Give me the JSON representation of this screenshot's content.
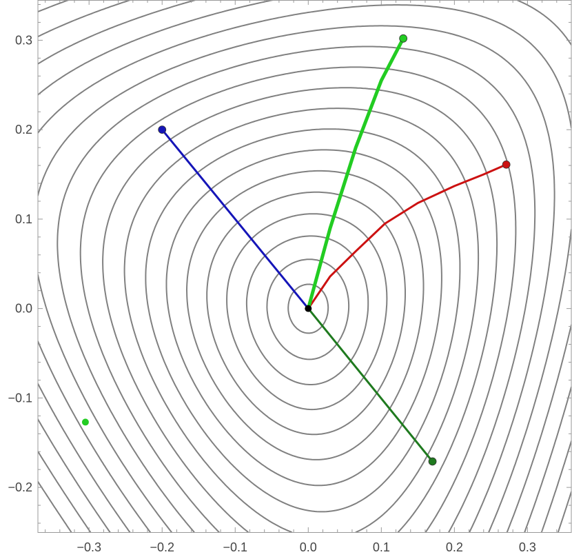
{
  "chart_data": {
    "type": "scatter",
    "title": "",
    "xlabel": "",
    "ylabel": "",
    "xlim": [
      -0.37,
      0.36
    ],
    "ylim": [
      -0.25,
      0.345
    ],
    "grid": false,
    "x_ticks": [
      {
        "value": -0.3,
        "label": "−0.3"
      },
      {
        "value": -0.2,
        "label": "−0.2"
      },
      {
        "value": -0.1,
        "label": "−0.1"
      },
      {
        "value": 0.0,
        "label": "0.0"
      },
      {
        "value": 0.1,
        "label": "0.1"
      },
      {
        "value": 0.2,
        "label": "0.2"
      },
      {
        "value": 0.3,
        "label": "0.3"
      }
    ],
    "y_ticks": [
      {
        "value": -0.2,
        "label": "−0.2"
      },
      {
        "value": -0.1,
        "label": "−0.1"
      },
      {
        "value": 0.0,
        "label": "0.0"
      },
      {
        "value": 0.1,
        "label": "0.1"
      },
      {
        "value": 0.2,
        "label": "0.2"
      },
      {
        "value": 0.3,
        "label": "0.3"
      }
    ],
    "contour_levels": [
      0.0006,
      0.0025,
      0.0055,
      0.0095,
      0.0145,
      0.0205,
      0.0275,
      0.0355,
      0.0445,
      0.0545,
      0.0655,
      0.0775,
      0.0905,
      0.1045,
      0.1195,
      0.1355,
      0.1525,
      0.1705
    ],
    "contour_color": "#808080",
    "origin_point": {
      "x": 0.0,
      "y": 0.0,
      "color": "#000000"
    },
    "paths": [
      {
        "color": "#1515b8",
        "points": [
          [
            0.0,
            0.0
          ],
          [
            -0.2,
            0.2
          ]
        ],
        "end": [
          -0.2,
          0.2
        ],
        "width": 3
      },
      {
        "color": "#cc1111",
        "points": [
          [
            0.0,
            0.0
          ],
          [
            0.03,
            0.036
          ],
          [
            0.065,
            0.064
          ],
          [
            0.105,
            0.095
          ],
          [
            0.15,
            0.118
          ],
          [
            0.2,
            0.137
          ],
          [
            0.24,
            0.15
          ],
          [
            0.271,
            0.161
          ]
        ],
        "end": [
          0.271,
          0.161
        ],
        "width": 3
      },
      {
        "color": "#22cc22",
        "points": [
          [
            0.0,
            0.0
          ],
          [
            0.03,
            0.09
          ],
          [
            0.065,
            0.18
          ],
          [
            0.1,
            0.255
          ],
          [
            0.13,
            0.302
          ]
        ],
        "end": [
          0.13,
          0.302
        ],
        "width": 5
      },
      {
        "color": "#1f7a1f",
        "points": [
          [
            0.0,
            0.0
          ],
          [
            0.17,
            -0.171
          ]
        ],
        "end": [
          0.17,
          -0.171
        ],
        "width": 3
      }
    ],
    "extra_points": [
      {
        "x": -0.305,
        "y": -0.127,
        "color": "#22cc22"
      }
    ]
  }
}
